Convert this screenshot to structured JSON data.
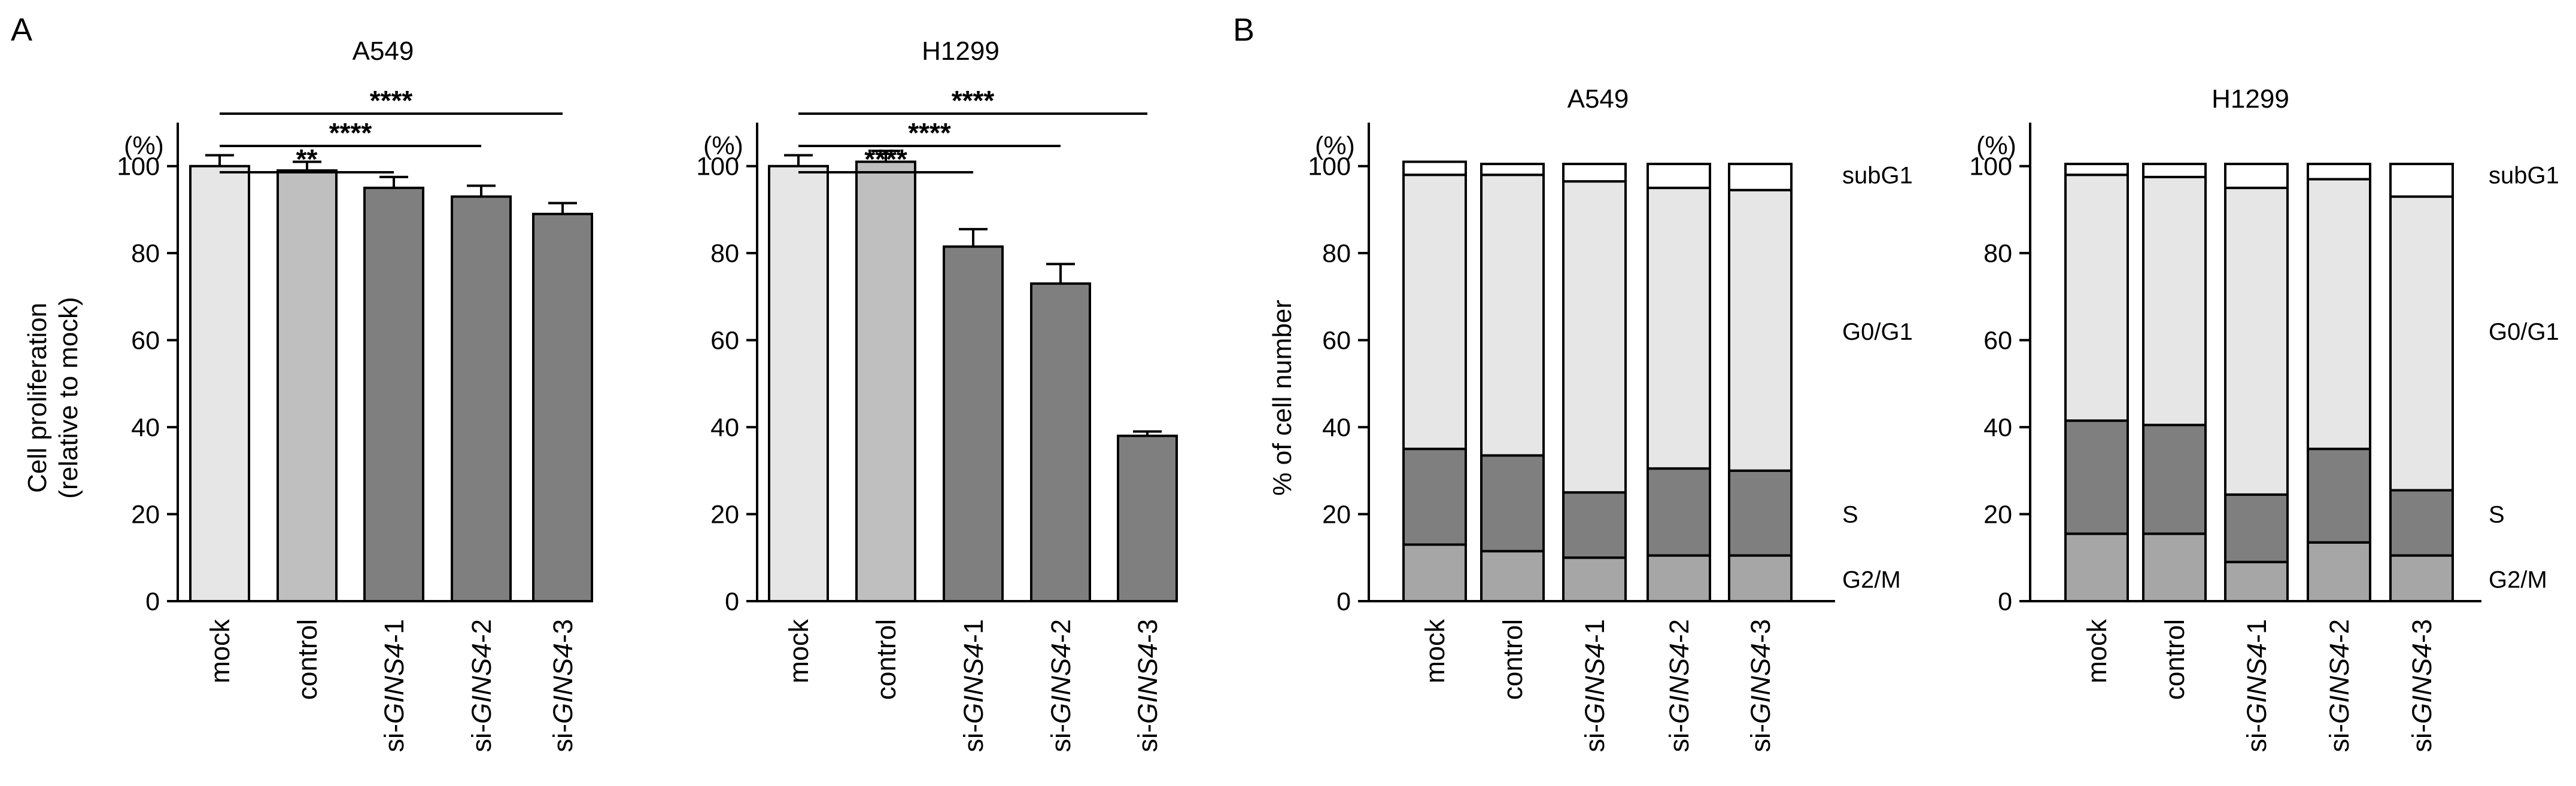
{
  "chart_data": [
    {
      "type": "bar",
      "panel": "A",
      "title": "A549",
      "ylabel_line1": "Cell proliferation",
      "ylabel_line2": "(relative to mock)",
      "unit_label": "(%)",
      "ylim": [
        0,
        110
      ],
      "yticks": [
        0,
        20,
        40,
        60,
        80,
        100
      ],
      "categories": [
        {
          "pre": "",
          "italic": "",
          "post": "mock"
        },
        {
          "pre": "",
          "italic": "",
          "post": "control"
        },
        {
          "pre": "si-",
          "italic": "GINS4",
          "post": "-1"
        },
        {
          "pre": "si-",
          "italic": "GINS4",
          "post": "-2"
        },
        {
          "pre": "si-",
          "italic": "GINS4",
          "post": "-3"
        }
      ],
      "values": [
        100,
        99,
        95,
        93,
        89
      ],
      "errors": [
        2.5,
        2.0,
        2.5,
        2.5,
        2.5
      ],
      "colors": [
        "#e6e6e6",
        "#bfbfbf",
        "#7f7f7f",
        "#7f7f7f",
        "#7f7f7f"
      ],
      "significance": [
        {
          "from": 0,
          "to": 2,
          "label": "**"
        },
        {
          "from": 0,
          "to": 3,
          "label": "****"
        },
        {
          "from": 0,
          "to": 4,
          "label": "****"
        }
      ]
    },
    {
      "type": "bar",
      "panel": "",
      "title": "H1299",
      "unit_label": "(%)",
      "ylim": [
        0,
        110
      ],
      "yticks": [
        0,
        20,
        40,
        60,
        80,
        100
      ],
      "categories": [
        {
          "pre": "",
          "italic": "",
          "post": "mock"
        },
        {
          "pre": "",
          "italic": "",
          "post": "control"
        },
        {
          "pre": "si-",
          "italic": "GINS4",
          "post": "-1"
        },
        {
          "pre": "si-",
          "italic": "GINS4",
          "post": "-2"
        },
        {
          "pre": "si-",
          "italic": "GINS4",
          "post": "-3"
        }
      ],
      "values": [
        100,
        101,
        81.5,
        73,
        38
      ],
      "errors": [
        2.5,
        2.5,
        4.0,
        4.5,
        1.0
      ],
      "colors": [
        "#e6e6e6",
        "#bfbfbf",
        "#7f7f7f",
        "#7f7f7f",
        "#7f7f7f"
      ],
      "significance": [
        {
          "from": 0,
          "to": 2,
          "label": "****"
        },
        {
          "from": 0,
          "to": 3,
          "label": "****"
        },
        {
          "from": 0,
          "to": 4,
          "label": "****"
        }
      ]
    },
    {
      "type": "stacked-bar",
      "panel": "B",
      "title": "A549",
      "ylabel": "% of cell number",
      "unit_label": "(%)",
      "ylim": [
        0,
        110
      ],
      "yticks": [
        0,
        20,
        40,
        60,
        80,
        100
      ],
      "categories": [
        {
          "pre": "",
          "italic": "",
          "post": "mock"
        },
        {
          "pre": "",
          "italic": "",
          "post": "control"
        },
        {
          "pre": "si-",
          "italic": "GINS4",
          "post": "-1"
        },
        {
          "pre": "si-",
          "italic": "GINS4",
          "post": "-2"
        },
        {
          "pre": "si-",
          "italic": "GINS4",
          "post": "-3"
        }
      ],
      "series": [
        {
          "name": "G2/M",
          "color": "#a6a6a6",
          "values": [
            13,
            11.5,
            10,
            10.5,
            10.5
          ]
        },
        {
          "name": "S",
          "color": "#7f7f7f",
          "values": [
            22,
            22,
            15,
            20,
            19.5
          ]
        },
        {
          "name": "G0/G1",
          "color": "#e6e6e6",
          "values": [
            63,
            64.5,
            71.5,
            64.5,
            64.5
          ]
        },
        {
          "name": "subG1",
          "color": "#ffffff",
          "values": [
            3,
            2.5,
            4,
            5.5,
            6
          ]
        }
      ],
      "legend_levels": {
        "subG1": 98,
        "G0/G1": 62,
        "S": 20,
        "G2/M": 5
      }
    },
    {
      "type": "stacked-bar",
      "panel": "",
      "title": "H1299",
      "unit_label": "(%)",
      "ylim": [
        0,
        110
      ],
      "yticks": [
        0,
        20,
        40,
        60,
        80,
        100
      ],
      "categories": [
        {
          "pre": "",
          "italic": "",
          "post": "mock"
        },
        {
          "pre": "",
          "italic": "",
          "post": "control"
        },
        {
          "pre": "si-",
          "italic": "GINS4",
          "post": "-1"
        },
        {
          "pre": "si-",
          "italic": "GINS4",
          "post": "-2"
        },
        {
          "pre": "si-",
          "italic": "GINS4",
          "post": "-3"
        }
      ],
      "series": [
        {
          "name": "G2/M",
          "color": "#a6a6a6",
          "values": [
            15.5,
            15.5,
            9,
            13.5,
            10.5
          ]
        },
        {
          "name": "S",
          "color": "#7f7f7f",
          "values": [
            26,
            25,
            15.5,
            21.5,
            15
          ]
        },
        {
          "name": "G0/G1",
          "color": "#e6e6e6",
          "values": [
            56.5,
            57,
            70.5,
            62,
            67.5
          ]
        },
        {
          "name": "subG1",
          "color": "#ffffff",
          "values": [
            2.5,
            3,
            5.5,
            3.5,
            7.5
          ]
        }
      ],
      "legend_levels": {
        "subG1": 98,
        "G0/G1": 62,
        "S": 20,
        "G2/M": 5
      }
    }
  ]
}
